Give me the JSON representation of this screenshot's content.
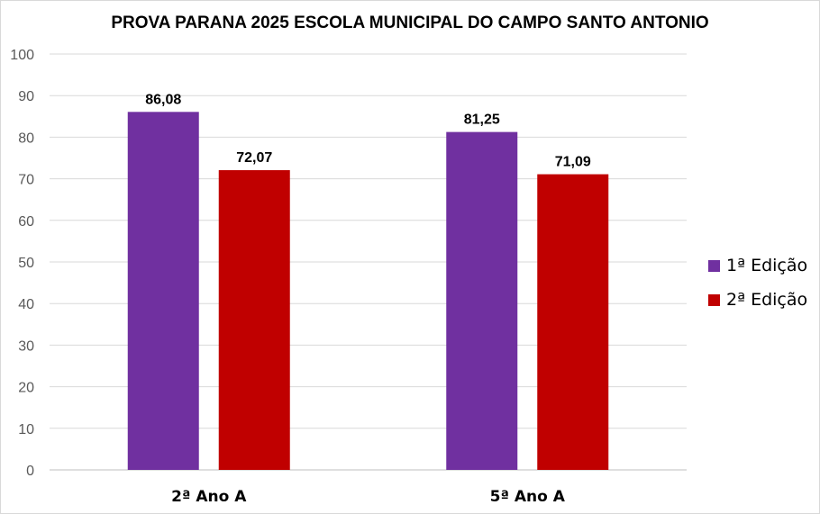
{
  "chart_data": {
    "type": "bar",
    "title": "PROVA PARANA 2025 ESCOLA MUNICIPAL DO CAMPO SANTO ANTONIO",
    "categories": [
      "2ª Ano A",
      "5ª Ano A"
    ],
    "series": [
      {
        "name": "1ª Edição",
        "values": [
          86.08,
          81.25
        ],
        "labels": [
          "86,08",
          "81,25"
        ],
        "color": "#7030a0"
      },
      {
        "name": "2ª Edição",
        "values": [
          72.07,
          71.09
        ],
        "labels": [
          "72,07",
          "71,09"
        ],
        "color": "#c00000"
      }
    ],
    "ylim": [
      0,
      100
    ],
    "yticks": [
      "0",
      "10",
      "20",
      "30",
      "40",
      "50",
      "60",
      "70",
      "80",
      "90",
      "100"
    ],
    "grid": true,
    "legend": "right"
  }
}
